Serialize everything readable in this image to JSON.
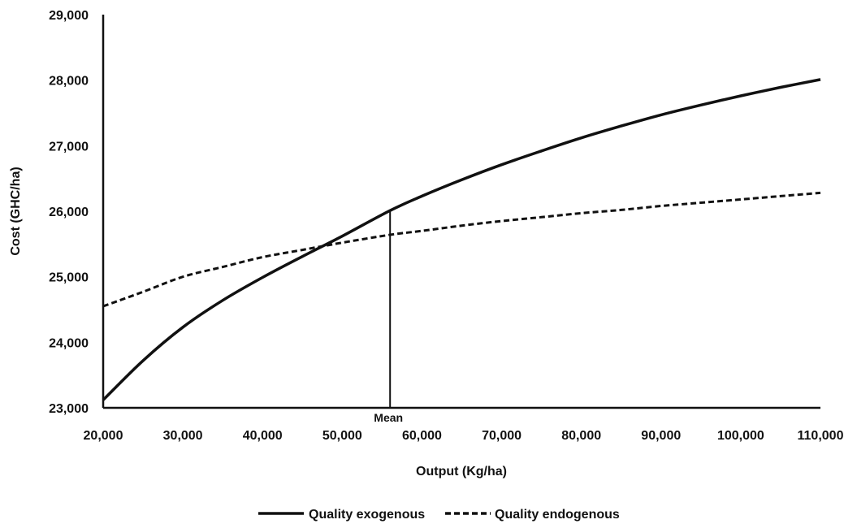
{
  "chart_data": {
    "type": "line",
    "xlabel": "Output (Kg/ha)",
    "ylabel": "Cost (GHC/ha)",
    "xlim": [
      20000,
      110000
    ],
    "ylim": [
      23000,
      29000
    ],
    "x_ticks": [
      "20,000",
      "30,000",
      "40,000",
      "50,000",
      "60,000",
      "70,000",
      "80,000",
      "90,000",
      "100,000",
      "110,000"
    ],
    "y_ticks": [
      "23,000",
      "24,000",
      "25,000",
      "26,000",
      "27,000",
      "28,000",
      "29,000"
    ],
    "x": [
      20000,
      25000,
      30000,
      35000,
      40000,
      45000,
      50000,
      56000,
      60000,
      65000,
      70000,
      75000,
      80000,
      85000,
      90000,
      95000,
      100000,
      105000,
      110000
    ],
    "series": [
      {
        "name": "Quality exogenous",
        "style": "solid",
        "values": [
          23120,
          23720,
          24230,
          24640,
          24990,
          25310,
          25620,
          26010,
          26230,
          26480,
          26710,
          26920,
          27120,
          27300,
          27470,
          27620,
          27760,
          27890,
          28010
        ]
      },
      {
        "name": "Quality endogenous",
        "style": "dashed",
        "values": [
          24550,
          24770,
          25000,
          25150,
          25300,
          25410,
          25520,
          25640,
          25700,
          25780,
          25850,
          25910,
          25970,
          26020,
          26080,
          26130,
          26180,
          26230,
          26280
        ]
      }
    ],
    "annotations": [
      {
        "text": "Mean",
        "x": 56000,
        "y_top": 26010
      }
    ],
    "grid": false,
    "legend_position": "bottom-center",
    "colors": {
      "line": "#111111",
      "axis": "#111111"
    }
  }
}
